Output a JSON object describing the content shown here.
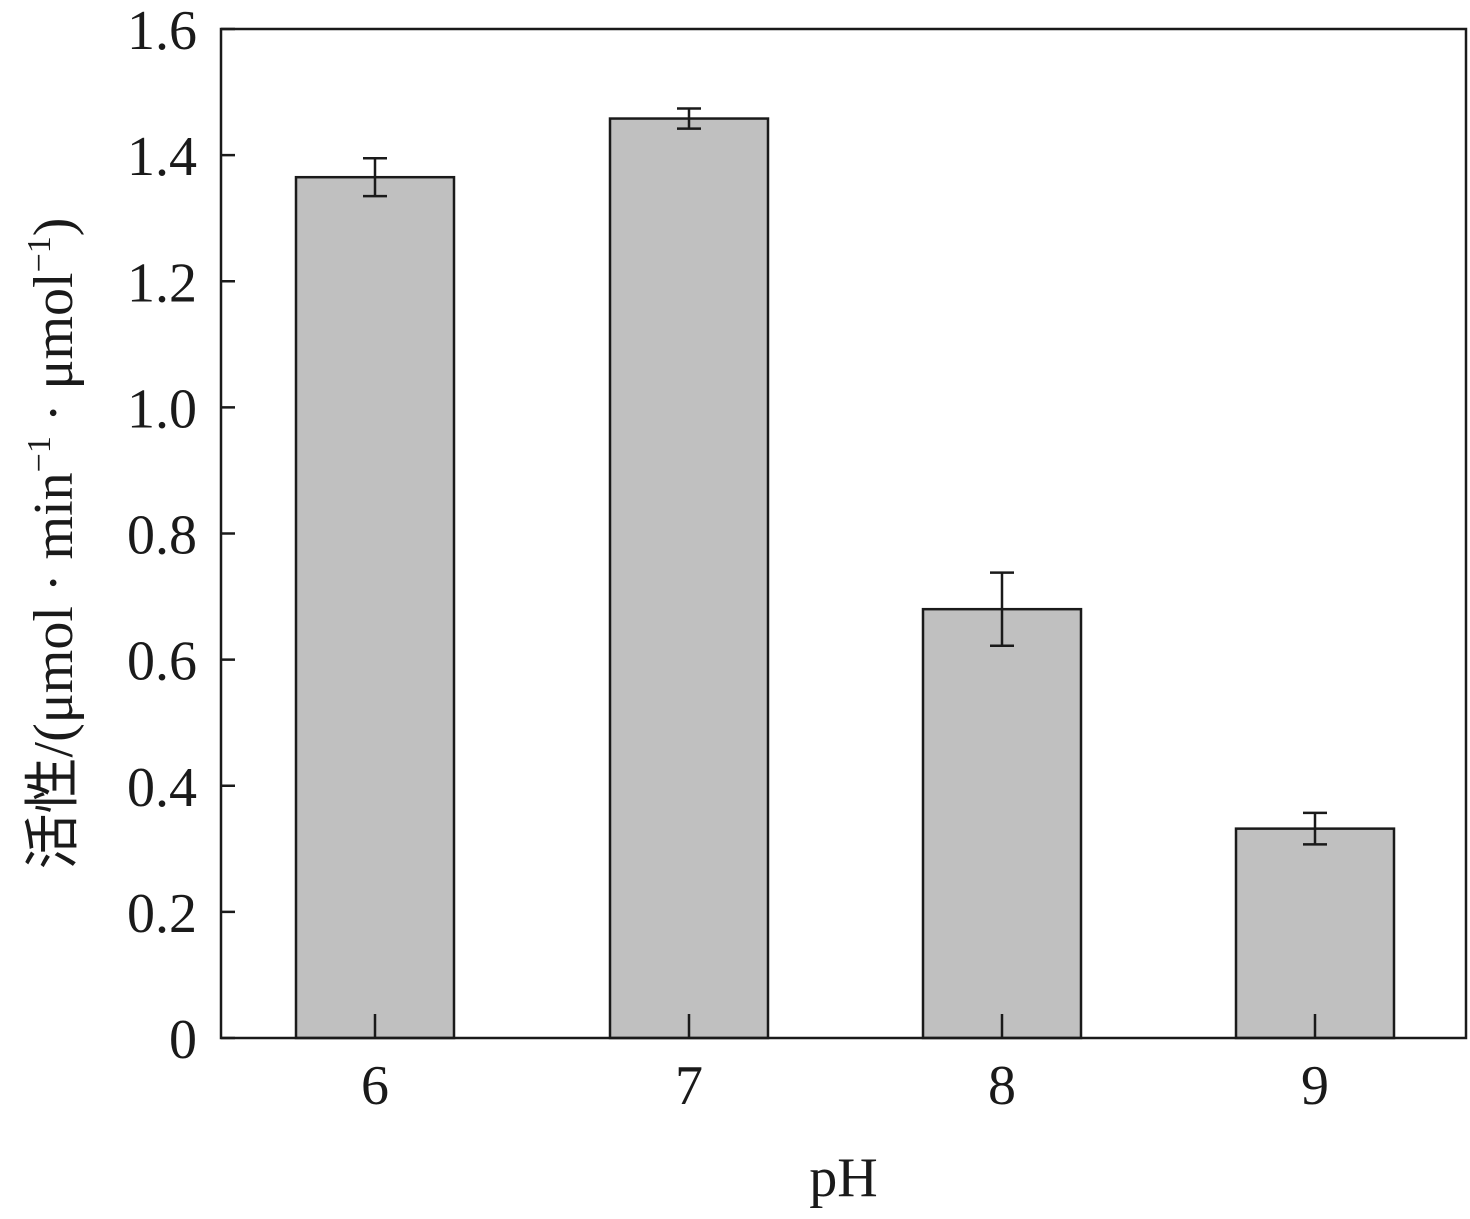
{
  "chart_data": {
    "type": "bar",
    "title": "",
    "xlabel": "pH",
    "ylabel": {
      "prefix": "活性/(μmol · min",
      "sup1": "−1",
      "middle": " · μmol",
      "sup2": "−1",
      "suffix": ")"
    },
    "categories": [
      "6",
      "7",
      "8",
      "9"
    ],
    "values": [
      1.365,
      1.458,
      0.68,
      0.332
    ],
    "errors": [
      0.03,
      0.016,
      0.058,
      0.025
    ],
    "ylim": [
      0,
      1.6
    ],
    "yticks": [
      0,
      0.2,
      0.4,
      0.6,
      0.8,
      1.0,
      1.2,
      1.4,
      1.6
    ],
    "ytick_labels": [
      "0",
      "0.2",
      "0.4",
      "0.6",
      "0.8",
      "1.0",
      "1.2",
      "1.4",
      "1.6"
    ],
    "grid": false,
    "legend": null,
    "colors": {
      "bar_fill": "#c0c0c0",
      "bar_stroke": "#1a1a1a",
      "axis": "#1a1a1a"
    }
  }
}
